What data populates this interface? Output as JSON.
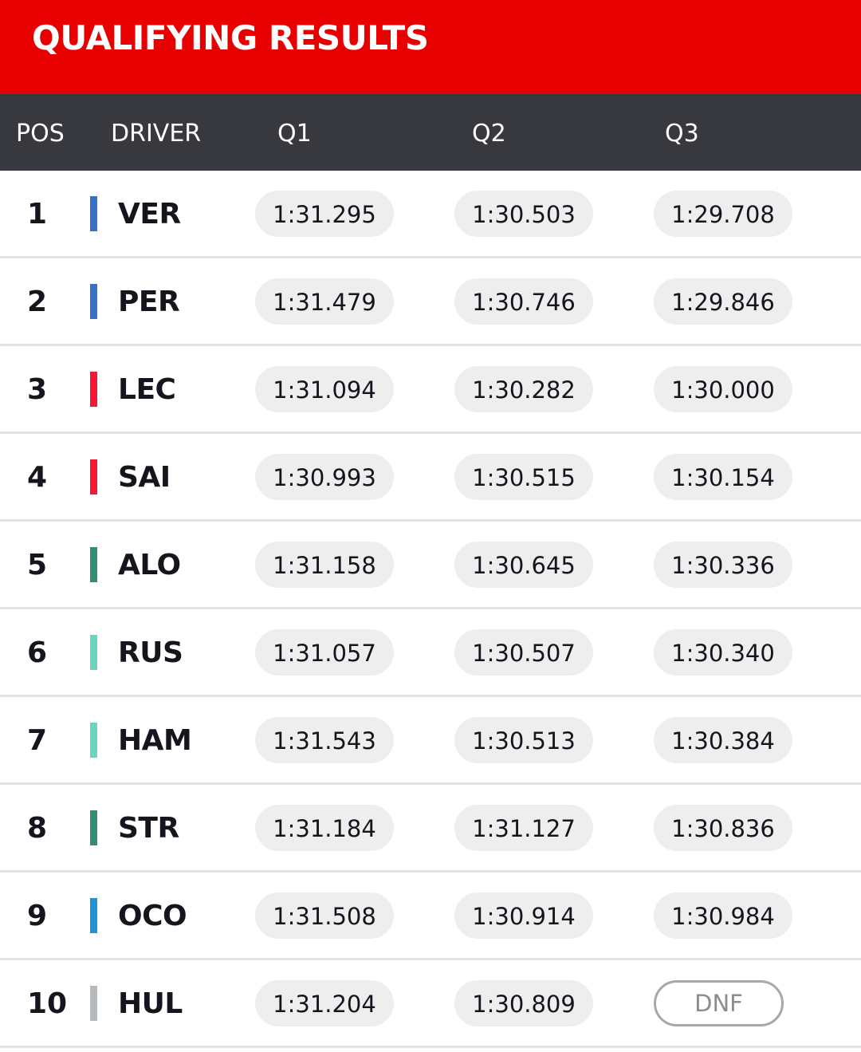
{
  "title": "QUALIFYING RESULTS",
  "columns": {
    "pos": "POS",
    "driver": "DRIVER",
    "q1": "Q1",
    "q2": "Q2",
    "q3": "Q3"
  },
  "rows": [
    {
      "pos": "1",
      "driver": "VER",
      "team_color": "#3671c6",
      "q1": "1:31.295",
      "q2": "1:30.503",
      "q3": "1:29.708"
    },
    {
      "pos": "2",
      "driver": "PER",
      "team_color": "#3671c6",
      "q1": "1:31.479",
      "q2": "1:30.746",
      "q3": "1:29.846"
    },
    {
      "pos": "3",
      "driver": "LEC",
      "team_color": "#f91536",
      "q1": "1:31.094",
      "q2": "1:30.282",
      "q3": "1:30.000"
    },
    {
      "pos": "4",
      "driver": "SAI",
      "team_color": "#f91536",
      "q1": "1:30.993",
      "q2": "1:30.515",
      "q3": "1:30.154"
    },
    {
      "pos": "5",
      "driver": "ALO",
      "team_color": "#358c75",
      "q1": "1:31.158",
      "q2": "1:30.645",
      "q3": "1:30.336"
    },
    {
      "pos": "6",
      "driver": "RUS",
      "team_color": "#6cd3bf",
      "q1": "1:31.057",
      "q2": "1:30.507",
      "q3": "1:30.340"
    },
    {
      "pos": "7",
      "driver": "HAM",
      "team_color": "#6cd3bf",
      "q1": "1:31.543",
      "q2": "1:30.513",
      "q3": "1:30.384"
    },
    {
      "pos": "8",
      "driver": "STR",
      "team_color": "#358c75",
      "q1": "1:31.184",
      "q2": "1:31.127",
      "q3": "1:30.836"
    },
    {
      "pos": "9",
      "driver": "OCO",
      "team_color": "#2293d1",
      "q1": "1:31.508",
      "q2": "1:30.914",
      "q3": "1:30.984"
    },
    {
      "pos": "10",
      "driver": "HUL",
      "team_color": "#b6babd",
      "q1": "1:31.204",
      "q2": "1:30.809",
      "q3": "DNF"
    }
  ]
}
